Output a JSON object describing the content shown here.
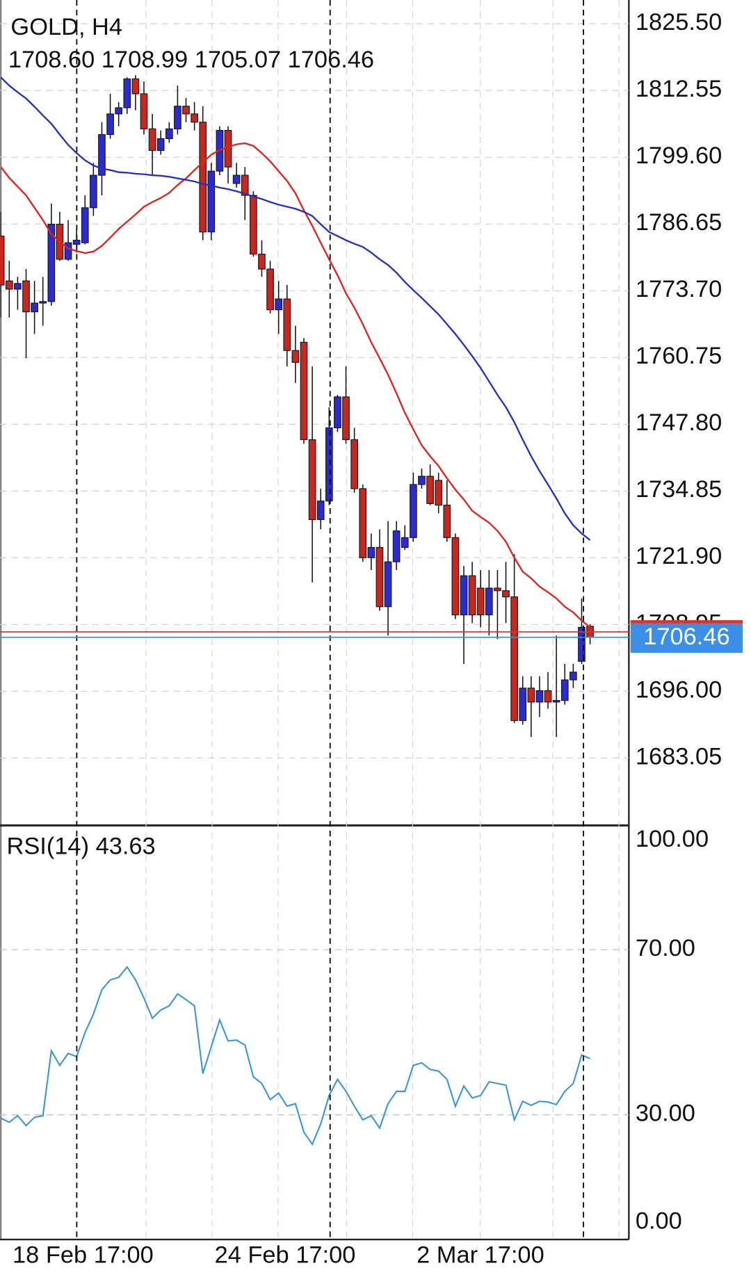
{
  "chart_data": [
    {
      "type": "candlestick",
      "title": "GOLD, H4",
      "subtitle": "1708.60 1708.99 1705.07 1706.46",
      "categories": [
        null,
        "18 Feb 17:00",
        null,
        null,
        null,
        null,
        null,
        null,
        null,
        null,
        null,
        null,
        null,
        null,
        null,
        null,
        null,
        null,
        null,
        null,
        null,
        null,
        null,
        null,
        null,
        "24 Feb 17:00",
        null,
        null,
        null,
        null,
        null,
        null,
        null,
        null,
        null,
        null,
        null,
        null,
        null,
        null,
        null,
        null,
        null,
        null,
        null,
        null,
        null,
        null,
        null,
        "2 Mar 17:00",
        null,
        null,
        null,
        null,
        null,
        null,
        null,
        null,
        null,
        null,
        null,
        null,
        null,
        null,
        null,
        null,
        null,
        null,
        null,
        null,
        null
      ],
      "open": [
        1784.3,
        1775.6,
        1774.0,
        1775.6,
        1769.6,
        1771.3,
        1771.6,
        1786.6,
        1779.8,
        1782.7,
        1783.0,
        1789.8,
        1796.1,
        1804.0,
        1808.0,
        1809.2,
        1814.8,
        1811.9,
        1805.1,
        1800.9,
        1803.2,
        1805.1,
        1809.5,
        1808.0,
        1806.4,
        1785.1,
        1796.9,
        1804.8,
        1794.5,
        1796.1,
        1792.2,
        1780.8,
        1777.9,
        1770.0,
        1772.1,
        1762.1,
        1763.7,
        1744.8,
        1729.3,
        1732.9,
        1747.1,
        1753.1,
        1744.8,
        1735.3,
        1721.9,
        1723.9,
        1712.4,
        1721.1,
        1723.9,
        1725.8,
        1736.1,
        1737.7,
        1736.9,
        1732.1,
        1725.8,
        1710.8,
        1718.4,
        1716.0,
        1710.8,
        1716.0,
        1715.5,
        1714.3,
        1690.3,
        1696.6,
        1693.9,
        1696.1,
        1693.9,
        1694.2,
        1698.2,
        1701.8,
        1708.6
      ],
      "high": [
        1789.0,
        1779.5,
        1776.4,
        1777.9,
        1775.6,
        1776.4,
        1790.6,
        1789.0,
        1787.4,
        1785.8,
        1792.2,
        1798.5,
        1806.4,
        1811.9,
        1810.3,
        1815.1,
        1815.5,
        1814.3,
        1808.0,
        1804.8,
        1806.4,
        1813.5,
        1811.1,
        1810.3,
        1809.5,
        1798.5,
        1805.6,
        1805.6,
        1798.5,
        1797.7,
        1793.0,
        1783.5,
        1779.5,
        1775.6,
        1774.8,
        1766.9,
        1764.5,
        1759.0,
        1735.3,
        1751.1,
        1753.5,
        1759.0,
        1747.1,
        1736.1,
        1726.6,
        1727.4,
        1729.0,
        1729.0,
        1728.2,
        1738.4,
        1739.2,
        1740.0,
        1738.4,
        1736.9,
        1726.6,
        1720.3,
        1721.1,
        1719.5,
        1719.5,
        1719.5,
        1721.1,
        1722.6,
        1698.9,
        1698.9,
        1698.9,
        1699.7,
        1706.8,
        1701.3,
        1701.3,
        1714.0,
        1708.99
      ],
      "low": [
        1768.5,
        1768.5,
        1770.0,
        1760.6,
        1765.3,
        1766.9,
        1770.8,
        1779.5,
        1779.5,
        1781.1,
        1782.7,
        1788.2,
        1792.2,
        1803.2,
        1805.6,
        1808.0,
        1808.7,
        1804.0,
        1796.1,
        1800.1,
        1802.4,
        1804.0,
        1806.4,
        1804.8,
        1783.5,
        1783.5,
        1796.1,
        1794.5,
        1793.7,
        1787.4,
        1780.3,
        1776.4,
        1769.3,
        1765.3,
        1759.0,
        1755.8,
        1744.0,
        1717.1,
        1727.4,
        1732.1,
        1746.3,
        1744.0,
        1734.5,
        1721.1,
        1719.5,
        1711.6,
        1706.8,
        1719.5,
        1723.4,
        1725.0,
        1735.3,
        1732.1,
        1730.5,
        1725.0,
        1710.0,
        1701.3,
        1709.2,
        1708.4,
        1706.8,
        1706.1,
        1709.2,
        1689.8,
        1689.5,
        1687.1,
        1691.0,
        1692.6,
        1687.1,
        1693.4,
        1696.6,
        1701.3,
        1705.07
      ],
      "close": [
        1774.8,
        1774.0,
        1775.1,
        1769.6,
        1771.3,
        1771.6,
        1786.6,
        1779.8,
        1783.0,
        1783.5,
        1789.8,
        1796.1,
        1804.0,
        1808.0,
        1809.2,
        1814.8,
        1811.9,
        1805.1,
        1800.9,
        1803.2,
        1805.1,
        1809.5,
        1808.0,
        1806.4,
        1785.1,
        1796.9,
        1804.8,
        1797.7,
        1796.1,
        1792.2,
        1780.8,
        1777.9,
        1770.0,
        1772.1,
        1762.1,
        1759.8,
        1744.8,
        1729.3,
        1732.9,
        1747.1,
        1753.1,
        1744.8,
        1735.3,
        1721.9,
        1723.9,
        1712.4,
        1721.1,
        1727.1,
        1725.8,
        1736.1,
        1737.7,
        1732.4,
        1732.1,
        1725.8,
        1710.8,
        1718.4,
        1710.8,
        1710.8,
        1716.0,
        1715.5,
        1714.3,
        1690.3,
        1696.6,
        1693.9,
        1696.1,
        1693.9,
        1694.2,
        1698.2,
        1699.7,
        1708.4,
        1706.46
      ],
      "up_color": "#2b2bd0",
      "down_color": "#c8261e",
      "series": [
        {
          "color": "#e3231c",
          "values": [
            1797.7,
            1795.6,
            1793.9,
            1792.2,
            1789.8,
            1787.4,
            1784.7,
            1783.2,
            1781.9,
            1781.4,
            1781.0,
            1781.3,
            1782.4,
            1784.0,
            1785.7,
            1787.1,
            1788.5,
            1790.0,
            1790.9,
            1791.7,
            1792.7,
            1794.2,
            1795.5,
            1797.1,
            1798.6,
            1800.1,
            1801.0,
            1801.6,
            1802.1,
            1802.3,
            1801.8,
            1800.4,
            1798.8,
            1796.9,
            1795.0,
            1792.6,
            1789.3,
            1786.3,
            1783.0,
            1779.8,
            1776.7,
            1773.2,
            1770.4,
            1767.2,
            1763.7,
            1760.6,
            1757.4,
            1753.8,
            1750.0,
            1746.8,
            1743.7,
            1741.6,
            1739.7,
            1737.3,
            1735.1,
            1733.2,
            1731.0,
            1729.8,
            1728.7,
            1727.1,
            1725.0,
            1721.9,
            1719.2,
            1717.9,
            1716.3,
            1715.2,
            1714.0,
            1712.4,
            1711.3,
            1709.7,
            1708.4
          ]
        },
        {
          "color": "#2431c4",
          "values": [
            1815.1,
            1813.5,
            1812.2,
            1811.0,
            1809.4,
            1807.7,
            1806.1,
            1804.0,
            1802.0,
            1800.4,
            1799.0,
            1798.0,
            1797.4,
            1797.1,
            1796.7,
            1796.6,
            1796.4,
            1796.3,
            1796.1,
            1796.0,
            1795.8,
            1795.5,
            1795.2,
            1794.9,
            1794.4,
            1794.1,
            1793.7,
            1793.4,
            1793.0,
            1792.5,
            1792.0,
            1791.5,
            1790.9,
            1790.4,
            1790.0,
            1789.6,
            1789.0,
            1788.2,
            1786.6,
            1785.1,
            1784.3,
            1783.5,
            1782.8,
            1782.2,
            1781.1,
            1779.8,
            1778.7,
            1777.2,
            1775.4,
            1773.8,
            1772.3,
            1770.7,
            1769.1,
            1767.2,
            1765.3,
            1763.2,
            1761.0,
            1758.7,
            1756.1,
            1753.5,
            1751.1,
            1748.2,
            1744.8,
            1741.6,
            1738.7,
            1736.1,
            1733.4,
            1730.5,
            1728.2,
            1726.6,
            1725.3
          ]
        }
      ],
      "bid": 1706.46,
      "bid_color": "#3b8fe6",
      "ask": 1707.5,
      "ask_color": "#d9362b",
      "ylim": [
        1670.2,
        1830.1
      ],
      "yticks": [
        {
          "value": 1825.5,
          "label": "1825.50"
        },
        {
          "value": 1812.55,
          "label": "1812.55"
        },
        {
          "value": 1799.6,
          "label": "1799.60"
        },
        {
          "value": 1786.65,
          "label": "1786.65"
        },
        {
          "value": 1773.7,
          "label": "1773.70"
        },
        {
          "value": 1760.75,
          "label": "1760.75"
        },
        {
          "value": 1747.8,
          "label": "1747.80"
        },
        {
          "value": 1734.85,
          "label": "1734.85"
        },
        {
          "value": 1721.9,
          "label": "1721.90"
        },
        {
          "value": 1708.95,
          "label": "1708.95"
        },
        {
          "value": 1696,
          "label": "1696.00"
        },
        {
          "value": 1683.05,
          "label": "1683.05"
        }
      ],
      "grid": true
    },
    {
      "type": "line",
      "title": "RSI(14) 43.63",
      "color": "#3b97d6",
      "values": [
        29.2,
        28.2,
        29.8,
        27.4,
        29.4,
        29.8,
        45.5,
        42.0,
        44.9,
        44.1,
        49.9,
        54.4,
        60.3,
        62.7,
        63.3,
        65.8,
        62.7,
        58.3,
        53.4,
        55.4,
        56.4,
        59.3,
        57.9,
        56.4,
        40.0,
        46.5,
        53.0,
        47.9,
        48.1,
        46.9,
        39.2,
        37.6,
        33.7,
        35.3,
        32.1,
        32.7,
        25.8,
        22.9,
        27.8,
        34.7,
        38.6,
        35.7,
        32.1,
        28.8,
        29.8,
        26.8,
        32.7,
        35.7,
        35.7,
        42.0,
        42.6,
        41.0,
        40.6,
        38.6,
        32.1,
        37.0,
        34.1,
        34.7,
        38.0,
        37.6,
        37.2,
        28.8,
        33.3,
        32.3,
        33.3,
        33.1,
        32.5,
        35.7,
        37.6,
        44.5,
        43.63
      ],
      "ylim": [
        0,
        100
      ],
      "yticks": [
        {
          "value": 100,
          "label": "100.00"
        },
        {
          "value": 70,
          "label": "70.00"
        },
        {
          "value": 30,
          "label": "30.00"
        },
        {
          "value": 0,
          "label": "0.00"
        }
      ],
      "grid": true
    }
  ]
}
